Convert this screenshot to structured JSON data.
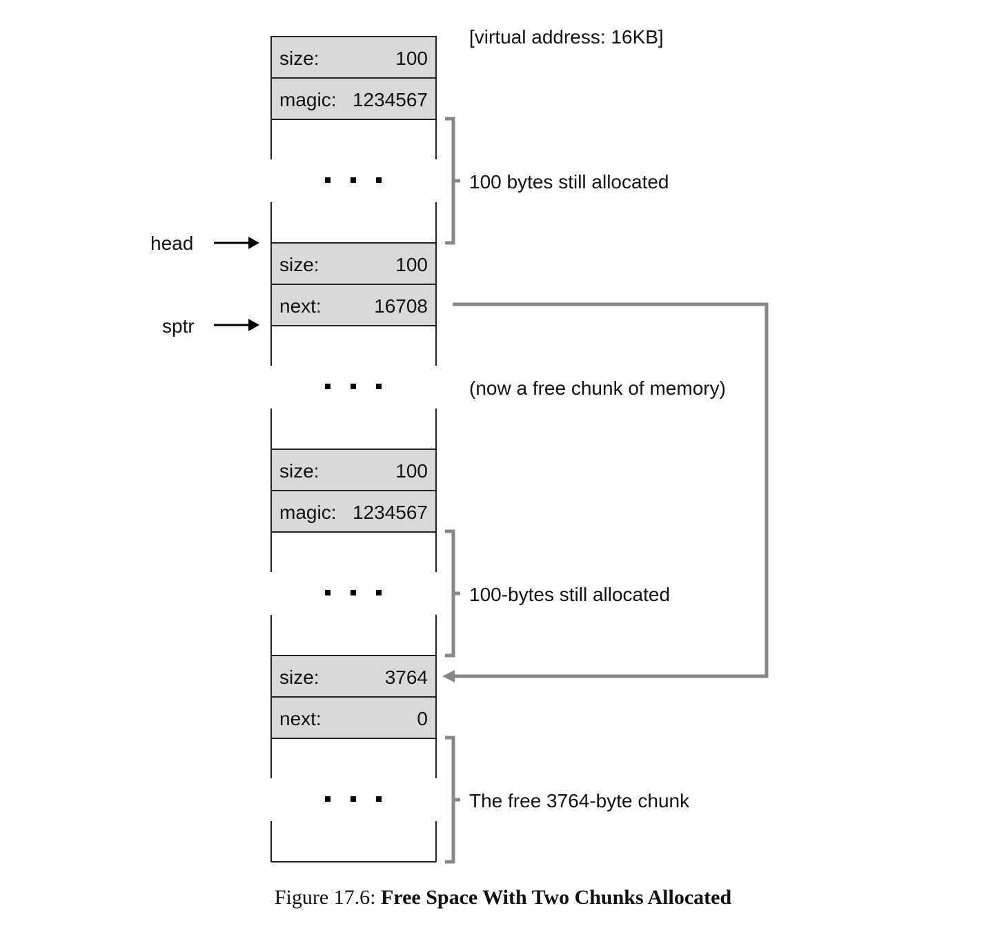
{
  "address_label": "[virtual address: 16KB]",
  "pointers": {
    "head": "head",
    "sptr": "sptr"
  },
  "blocks": [
    {
      "type": "header",
      "key": "size:",
      "value": "100"
    },
    {
      "type": "header",
      "key": "magic:",
      "value": "1234567"
    },
    {
      "type": "body",
      "ellipsis": "▪ ▪ ▪"
    },
    {
      "type": "header",
      "key": "size:",
      "value": "100"
    },
    {
      "type": "header",
      "key": "next:",
      "value": "16708"
    },
    {
      "type": "body",
      "ellipsis": "▪ ▪ ▪"
    },
    {
      "type": "header",
      "key": "size:",
      "value": "100"
    },
    {
      "type": "header",
      "key": "magic:",
      "value": "1234567"
    },
    {
      "type": "body",
      "ellipsis": "▪ ▪ ▪"
    },
    {
      "type": "header",
      "key": "size:",
      "value": "3764"
    },
    {
      "type": "header",
      "key": "next:",
      "value": "0"
    },
    {
      "type": "body",
      "ellipsis": "▪ ▪ ▪"
    }
  ],
  "annotations": {
    "first": "100 bytes still allocated",
    "free_middle": "(now a free chunk of memory)",
    "second": "100-bytes still allocated",
    "free_end": "The free 3764-byte chunk"
  },
  "caption": {
    "prefix": "Figure 17.6: ",
    "title": "Free Space With Two Chunks Allocated"
  },
  "colors": {
    "header_fill": "#d9d9d9",
    "line": "#222222",
    "bracket": "#888888",
    "arrow": "#888888"
  }
}
